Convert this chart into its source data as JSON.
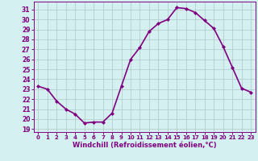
{
  "x": [
    0,
    1,
    2,
    3,
    4,
    5,
    6,
    7,
    8,
    9,
    10,
    11,
    12,
    13,
    14,
    15,
    16,
    17,
    18,
    19,
    20,
    21,
    22,
    23
  ],
  "y": [
    23.3,
    23.0,
    21.8,
    21.0,
    20.5,
    19.6,
    19.7,
    19.7,
    20.6,
    23.3,
    26.0,
    27.2,
    28.8,
    29.6,
    30.0,
    31.2,
    31.1,
    30.7,
    29.9,
    29.1,
    27.3,
    25.2,
    23.1,
    22.7
  ],
  "line_color": "#800080",
  "marker": "D",
  "marker_size": 2.0,
  "bg_color": "#d4f0f0",
  "grid_color": "#b0c8c8",
  "xlabel": "Windchill (Refroidissement éolien,°C)",
  "xlim": [
    -0.5,
    23.5
  ],
  "ylim": [
    18.7,
    31.8
  ],
  "yticks": [
    19,
    20,
    21,
    22,
    23,
    24,
    25,
    26,
    27,
    28,
    29,
    30,
    31
  ],
  "xticks": [
    0,
    1,
    2,
    3,
    4,
    5,
    6,
    7,
    8,
    9,
    10,
    11,
    12,
    13,
    14,
    15,
    16,
    17,
    18,
    19,
    20,
    21,
    22,
    23
  ],
  "xlabel_color": "#800080",
  "tick_color": "#800080",
  "line_width": 1.2
}
